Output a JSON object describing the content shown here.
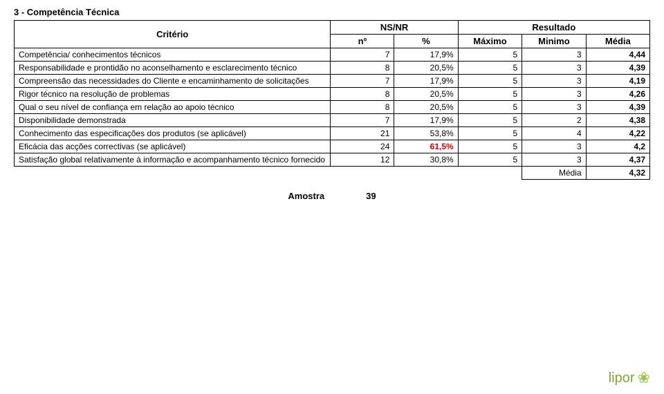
{
  "title": "3 - Competência Técnica",
  "headers": {
    "criterio": "Critério",
    "nsnr": "NS/NR",
    "resultado": "Resultado",
    "no": "nº",
    "pct": "%",
    "maximo": "Máximo",
    "minimo": "Minimo",
    "media": "Média"
  },
  "rows": [
    {
      "label": "Competência/ conhecimentos técnicos",
      "no": "7",
      "pct": "17,9%",
      "max": "5",
      "min": "3",
      "media": "4,44",
      "media_bold": true
    },
    {
      "label": "Responsabilidade e prontidão no aconselhamento e esclarecimento técnico",
      "no": "8",
      "pct": "20,5%",
      "max": "5",
      "min": "3",
      "media": "4,39",
      "media_bold": true
    },
    {
      "label": "Compreensão das necessidades do Cliente e encaminhamento de solicitações",
      "no": "7",
      "pct": "17,9%",
      "max": "5",
      "min": "3",
      "media": "4,19",
      "media_bold": true
    },
    {
      "label": "Rigor técnico na resolução de problemas",
      "no": "8",
      "pct": "20,5%",
      "max": "5",
      "min": "3",
      "media": "4,26",
      "media_bold": true
    },
    {
      "label": "Qual o seu nível de confiança em relação ao apoio técnico",
      "no": "8",
      "pct": "20,5%",
      "max": "5",
      "min": "3",
      "media": "4,39",
      "media_bold": true
    },
    {
      "label": "Disponibilidade demonstrada",
      "no": "7",
      "pct": "17,9%",
      "max": "5",
      "min": "2",
      "media": "4,38",
      "media_bold": true
    },
    {
      "label": "Conhecimento das especificações dos produtos (se aplicável)",
      "no": "21",
      "pct": "53,8%",
      "max": "5",
      "min": "4",
      "media": "4,22",
      "media_bold": true
    },
    {
      "label": "Eficácia das acções correctivas (se aplicável)",
      "no": "24",
      "pct": "61,5%",
      "pct_red": true,
      "max": "5",
      "min": "3",
      "media": "4,2",
      "media_bold": true
    },
    {
      "label": "Satisfação global relativamente à informação e acompanhamento técnico fornecido",
      "no": "12",
      "pct": "30,8%",
      "max": "5",
      "min": "3",
      "media": "4,37",
      "media_bold": true
    }
  ],
  "footer": {
    "media_label": "Média",
    "media_value": "4,32"
  },
  "amostra": {
    "label": "Amostra",
    "value": "39"
  },
  "logo_text": "lipor",
  "colors": {
    "red": "#d00000",
    "logo_green": "#7da834",
    "border": "#000000",
    "bg": "#ffffff"
  }
}
